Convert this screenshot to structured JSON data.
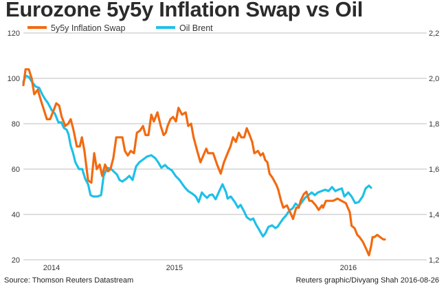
{
  "chart_data": {
    "type": "line",
    "title": "Eurozone 5y5y Inflation Swap vs Oil",
    "xlabel": "",
    "x_axis": {
      "unit": "relative time (0 = first observation, 100 = last observation)",
      "range": [
        0,
        100
      ],
      "tick_labels": [
        {
          "label": "2014",
          "t": 7.8
        },
        {
          "label": "2015",
          "t": 41.8
        },
        {
          "label": "2016",
          "t": 89.9
        }
      ]
    },
    "y_left": {
      "label": "",
      "range": [
        20,
        120
      ],
      "ticks": [
        "20",
        "40",
        "60",
        "80",
        "100",
        "120"
      ],
      "series": "Oil Brent"
    },
    "y_right": {
      "label": "",
      "range": [
        1.2,
        2.2
      ],
      "ticks": [
        "1,2",
        "1,4",
        "1,6",
        "1,8",
        "2,0",
        "2,2"
      ],
      "series": "5y5y Inflation Swap"
    },
    "grid": true,
    "legend": {
      "placement": "top-left",
      "entries": [
        "5y5y Inflation Swap",
        "Oil Brent"
      ]
    },
    "series": [
      {
        "name": "5y5y Inflation Swap",
        "axis": "right",
        "color": "#f26a10",
        "t": [
          0,
          0.6,
          1.5,
          2.3,
          3.0,
          4.0,
          4.9,
          5.7,
          6.5,
          7.4,
          8.4,
          9.1,
          9.9,
          10.6,
          11.6,
          12.4,
          13.1,
          13.9,
          14.8,
          15.6,
          16.2,
          16.9,
          17.9,
          18.8,
          19.6,
          20.3,
          21.1,
          21.8,
          22.6,
          23.4,
          24.1,
          24.9,
          25.7,
          26.6,
          27.4,
          28.1,
          28.9,
          29.7,
          30.6,
          31.4,
          32.3,
          33.1,
          33.8,
          34.6,
          35.4,
          36.1,
          37.1,
          38.0,
          38.8,
          39.4,
          39.9,
          40.7,
          41.4,
          42.2,
          42.9,
          43.9,
          44.9,
          45.6,
          46.4,
          47.1,
          48.1,
          49.0,
          49.8,
          50.6,
          51.1,
          52.5,
          53.6,
          54.6,
          55.5,
          56.5,
          57.3,
          58.0,
          58.8,
          59.6,
          60.3,
          61.1,
          61.8,
          62.6,
          63.3,
          63.9,
          64.9,
          65.6,
          66.3,
          66.9,
          67.5,
          68.1,
          69.0,
          70.0,
          70.5,
          71.3,
          71.9,
          72.9,
          73.8,
          74.6,
          75.5,
          76.2,
          76.7,
          77.6,
          78.3,
          79.1,
          79.8,
          80.9,
          81.7,
          82.6,
          82.9,
          83.7,
          84.5,
          84.9,
          85.7,
          86.9,
          88.0,
          89.2,
          90.3,
          90.8,
          91.6,
          92.4,
          93.0,
          93.9,
          94.8,
          95.6,
          96.2,
          96.6,
          97.1,
          97.9,
          98.7,
          99.6,
          100
        ],
        "values": [
          1.97,
          2.04,
          2.04,
          2.0,
          1.93,
          1.95,
          1.9,
          1.86,
          1.82,
          1.82,
          1.86,
          1.89,
          1.88,
          1.83,
          1.79,
          1.8,
          1.82,
          1.77,
          1.7,
          1.7,
          1.74,
          1.68,
          1.55,
          1.54,
          1.67,
          1.6,
          1.62,
          1.57,
          1.62,
          1.59,
          1.6,
          1.65,
          1.74,
          1.74,
          1.74,
          1.68,
          1.66,
          1.68,
          1.67,
          1.76,
          1.77,
          1.79,
          1.75,
          1.75,
          1.84,
          1.81,
          1.85,
          1.79,
          1.75,
          1.76,
          1.79,
          1.82,
          1.83,
          1.81,
          1.87,
          1.84,
          1.85,
          1.79,
          1.8,
          1.74,
          1.68,
          1.63,
          1.66,
          1.69,
          1.67,
          1.67,
          1.62,
          1.58,
          1.63,
          1.67,
          1.7,
          1.74,
          1.72,
          1.76,
          1.74,
          1.74,
          1.78,
          1.75,
          1.72,
          1.67,
          1.68,
          1.66,
          1.67,
          1.64,
          1.63,
          1.58,
          1.56,
          1.53,
          1.51,
          1.46,
          1.43,
          1.44,
          1.41,
          1.38,
          1.43,
          1.43,
          1.46,
          1.49,
          1.5,
          1.46,
          1.46,
          1.44,
          1.42,
          1.44,
          1.43,
          1.46,
          1.46,
          1.46,
          1.46,
          1.47,
          1.46,
          1.45,
          1.41,
          1.35,
          1.34,
          1.31,
          1.3,
          1.28,
          1.25,
          1.22,
          1.26,
          1.3,
          1.3,
          1.31,
          1.3,
          1.29,
          1.29,
          1.28
        ]
      },
      {
        "name": "Oil Brent",
        "axis": "left",
        "color": "#1ec0e8",
        "t": [
          0,
          0.6,
          1.5,
          2.5,
          3.4,
          4.4,
          5.3,
          6.1,
          6.8,
          7.8,
          8.7,
          9.7,
          10.5,
          11.2,
          12.0,
          12.5,
          13.1,
          13.7,
          14.4,
          15.4,
          16.3,
          17.1,
          17.9,
          18.6,
          19.4,
          20.5,
          21.5,
          22.2,
          23.2,
          24.3,
          25.1,
          25.9,
          26.6,
          27.4,
          28.5,
          29.3,
          30.2,
          31.2,
          32.1,
          33.1,
          34.2,
          35.4,
          36.5,
          37.3,
          38.2,
          39.2,
          39.9,
          41.1,
          42.1,
          43.2,
          44.3,
          44.9,
          45.6,
          46.8,
          47.7,
          48.5,
          49.4,
          50.0,
          50.8,
          51.5,
          52.3,
          53.2,
          54.2,
          55.1,
          56.1,
          56.5,
          57.4,
          58.5,
          59.4,
          60.1,
          61.1,
          61.8,
          62.8,
          63.6,
          64.3,
          65.2,
          66.3,
          67.0,
          67.8,
          68.8,
          69.7,
          70.3,
          71.1,
          71.9,
          72.6,
          73.6,
          74.5,
          75.3,
          76.2,
          77.2,
          77.9,
          78.9,
          79.8,
          80.6,
          81.5,
          82.5,
          83.5,
          84.4,
          85.4,
          86.3,
          87.1,
          88.1,
          88.8,
          89.9,
          90.8,
          91.8,
          92.8,
          93.9,
          94.7,
          95.6,
          96.2,
          96.8,
          97.6,
          99.4,
          100
        ],
        "values": [
          98.2,
          101.2,
          100.6,
          98.2,
          96.4,
          95.8,
          92.7,
          90.6,
          89.1,
          86.1,
          84.5,
          80.6,
          80.6,
          78.2,
          77.3,
          75.2,
          70.3,
          67.3,
          63.0,
          60.0,
          60.0,
          55.8,
          53.3,
          48.5,
          47.9,
          47.9,
          48.5,
          57.0,
          60.6,
          60.0,
          58.8,
          57.6,
          55.2,
          54.5,
          55.8,
          57.0,
          55.2,
          61.2,
          63.0,
          64.2,
          65.5,
          66.1,
          64.8,
          63.0,
          60.6,
          61.8,
          60.6,
          59.4,
          57.0,
          55.2,
          52.7,
          51.5,
          50.3,
          49.1,
          47.9,
          45.5,
          49.7,
          48.5,
          47.3,
          48.5,
          48.8,
          46.7,
          50.3,
          53.3,
          49.7,
          47.0,
          47.9,
          45.5,
          43.0,
          44.2,
          41.2,
          38.8,
          37.6,
          38.2,
          35.8,
          33.3,
          30.3,
          31.8,
          34.5,
          35.2,
          34.0,
          34.5,
          36.4,
          38.2,
          39.4,
          41.8,
          42.7,
          44.8,
          43.6,
          45.8,
          47.3,
          48.5,
          49.7,
          48.5,
          49.7,
          50.3,
          50.9,
          50.3,
          52.1,
          50.3,
          50.9,
          51.5,
          47.9,
          49.7,
          47.9,
          45.0,
          45.5,
          48.0,
          51.5,
          52.7,
          51.8
        ]
      }
    ]
  },
  "footer": {
    "source": "Source: Thomson Reuters Datastream",
    "credit": "Reuters graphic/Divyang Shah 2016-08-26"
  }
}
